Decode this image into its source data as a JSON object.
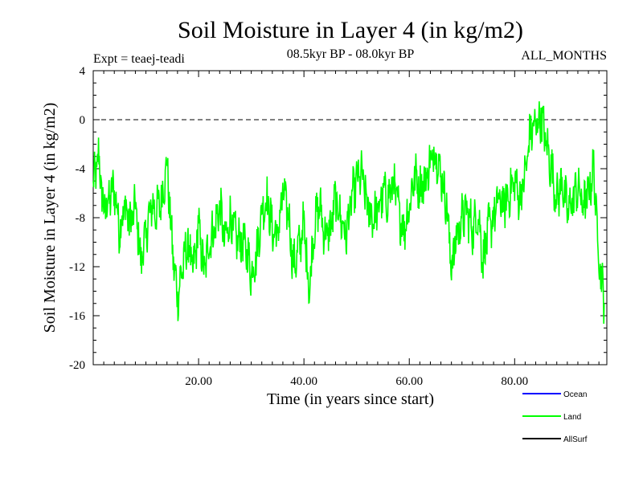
{
  "chart_data": {
    "type": "line",
    "title": "Soil Moisture in Layer 4 (in kg/m2)",
    "subtitle_left": "Expt = teaej-teadi",
    "subtitle_center": "08.5kyr BP - 08.0kyr BP",
    "subtitle_right": "ALL_MONTHS",
    "xlabel": "Time (in years since start)",
    "ylabel": "Soil Moisture in Layer 4 (in kg/m2)",
    "xlim": [
      0,
      97.5
    ],
    "ylim": [
      -20,
      4
    ],
    "x_ticks": [
      {
        "value": 20,
        "label": "20.00"
      },
      {
        "value": 40,
        "label": "40.00"
      },
      {
        "value": 60,
        "label": "60.00"
      },
      {
        "value": 80,
        "label": "80.00"
      }
    ],
    "y_ticks": [
      {
        "value": 4,
        "label": "4"
      },
      {
        "value": 0,
        "label": "0"
      },
      {
        "value": -4,
        "label": "-4"
      },
      {
        "value": -8,
        "label": "-8"
      },
      {
        "value": -12,
        "label": "-12"
      },
      {
        "value": -16,
        "label": "-16"
      },
      {
        "value": -20,
        "label": "-20"
      }
    ],
    "reference_line": {
      "y": 0,
      "style": "dashed"
    },
    "legend": {
      "placement": "bottom-right",
      "entries": [
        {
          "name": "Ocean",
          "color": "#0000ff"
        },
        {
          "name": "Land",
          "color": "#00ff00"
        },
        {
          "name": "AllSurf",
          "color": "#000000"
        }
      ]
    },
    "series": [
      {
        "name": "Land",
        "color": "#00ff00",
        "x": [
          0,
          1,
          2,
          3,
          4,
          5,
          6,
          7,
          8,
          9,
          10,
          11,
          12,
          13,
          14,
          15,
          16,
          17,
          18,
          19,
          20,
          21,
          22,
          23,
          24,
          25,
          26,
          27,
          28,
          29,
          30,
          31,
          32,
          33,
          34,
          35,
          36,
          37,
          38,
          39,
          40,
          41,
          42,
          43,
          44,
          45,
          46,
          47,
          48,
          49,
          50,
          51,
          52,
          53,
          54,
          55,
          56,
          57,
          58,
          59,
          60,
          61,
          62,
          63,
          64,
          65,
          66,
          67,
          68,
          69,
          70,
          71,
          72,
          73,
          74,
          75,
          76,
          77,
          78,
          79,
          80,
          81,
          82,
          83,
          84,
          85,
          86,
          87,
          88,
          89,
          90,
          91,
          92,
          93,
          94,
          95,
          96,
          97
        ],
        "values": [
          -5.5,
          -3.0,
          -7.5,
          -6.5,
          -5.5,
          -9.0,
          -7.0,
          -8.5,
          -7.0,
          -11.5,
          -9.5,
          -7.0,
          -7.5,
          -6.5,
          -3.5,
          -10.5,
          -14.5,
          -12.0,
          -10.0,
          -12.5,
          -8.5,
          -12.5,
          -10.0,
          -9.0,
          -7.0,
          -10.0,
          -8.0,
          -9.5,
          -10.0,
          -10.5,
          -12.5,
          -11.0,
          -7.5,
          -6.5,
          -9.0,
          -9.5,
          -6.0,
          -7.5,
          -12.0,
          -10.5,
          -8.5,
          -14.0,
          -8.5,
          -7.0,
          -9.5,
          -9.0,
          -6.5,
          -8.0,
          -9.5,
          -6.5,
          -5.0,
          -4.5,
          -7.0,
          -8.0,
          -7.5,
          -6.0,
          -6.5,
          -5.0,
          -7.5,
          -9.0,
          -7.0,
          -4.5,
          -5.5,
          -5.0,
          -3.5,
          -2.5,
          -4.5,
          -6.5,
          -12.0,
          -9.5,
          -8.0,
          -7.5,
          -9.0,
          -7.5,
          -11.5,
          -9.0,
          -8.0,
          -6.5,
          -7.0,
          -6.0,
          -5.0,
          -6.5,
          -4.5,
          -1.0,
          -0.5,
          0.3,
          -2.0,
          -4.0,
          -6.5,
          -5.0,
          -7.5,
          -6.5,
          -5.5,
          -7.0,
          -6.0,
          -4.0,
          -11.0,
          -15.0
        ]
      }
    ]
  }
}
